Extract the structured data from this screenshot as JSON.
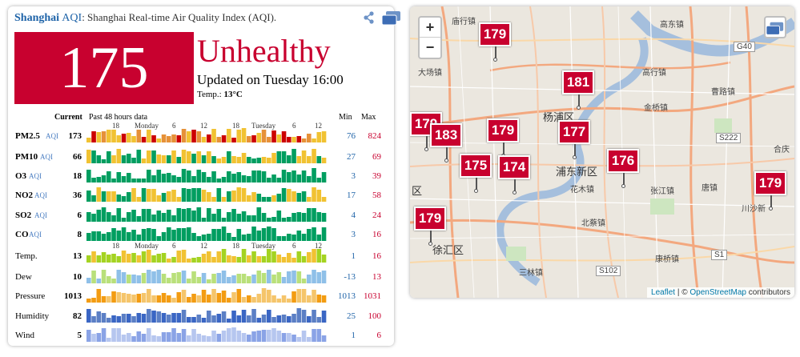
{
  "header": {
    "city": "Shanghai",
    "aqi_label": "AQI",
    "description": ": Shanghai Real-time Air Quality Index (AQI).",
    "share_icon": "share-icon",
    "window_icon": "window-icon"
  },
  "current": {
    "aqi": "175",
    "status": "Unhealthy",
    "updated": "Updated on Tuesday 16:00",
    "temp_label": "Temp.:",
    "temp_value": "13°C",
    "aqi_color": "#c8012f"
  },
  "table": {
    "col_current": "Current",
    "col_past": "Past 48 hours data",
    "col_min": "Min",
    "col_max": "Max",
    "day_ticks": [
      "18",
      "Monday",
      "6",
      "12",
      "18",
      "Tuesday",
      "6",
      "12"
    ],
    "rows": [
      {
        "label": "PM2.5",
        "sub": "AQI",
        "current": "173",
        "min": "76",
        "max": "824"
      },
      {
        "label": "PM10",
        "sub": "AQI",
        "current": "66",
        "min": "27",
        "max": "69"
      },
      {
        "label": "O3",
        "sub": "AQI",
        "current": "18",
        "min": "3",
        "max": "39"
      },
      {
        "label": "NO2",
        "sub": "AQI",
        "current": "36",
        "min": "17",
        "max": "58"
      },
      {
        "label": "SO2",
        "sub": "AQI",
        "current": "6",
        "min": "4",
        "max": "24"
      },
      {
        "label": "CO",
        "sub": "AQI",
        "current": "8",
        "min": "3",
        "max": "16"
      },
      {
        "label": "Temp.",
        "sub": "",
        "current": "13",
        "min": "1",
        "max": "16"
      },
      {
        "label": "Dew",
        "sub": "",
        "current": "10",
        "min": "-13",
        "max": "13"
      },
      {
        "label": "Pressure",
        "sub": "",
        "current": "1013",
        "min": "1013",
        "max": "1031"
      },
      {
        "label": "Humidity",
        "sub": "",
        "current": "82",
        "min": "25",
        "max": "100"
      },
      {
        "label": "Wind",
        "sub": "",
        "current": "5",
        "min": "1",
        "max": "6"
      }
    ]
  },
  "map": {
    "zoom_in": "+",
    "zoom_out": "−",
    "markers": [
      "179",
      "181",
      "179",
      "183",
      "179",
      "177",
      "175",
      "174",
      "176",
      "179",
      "179"
    ],
    "places": [
      "庙行镇",
      "大场镇",
      "杨浦区",
      "浦东新区",
      "花木镇",
      "张江镇",
      "北蔡镇",
      "徐汇区",
      "三林镇",
      "康桥镇",
      "高东镇",
      "高行镇",
      "金桥镇",
      "曹路镇",
      "唐镇",
      "川沙新",
      "合庆",
      "区"
    ],
    "road_labels": [
      "G40",
      "S222",
      "S102",
      "S1"
    ],
    "attribution_leaflet": "Leaflet",
    "attribution_sep": " | © ",
    "attribution_osm": "OpenStreetMap",
    "attribution_rest": " contributors"
  }
}
